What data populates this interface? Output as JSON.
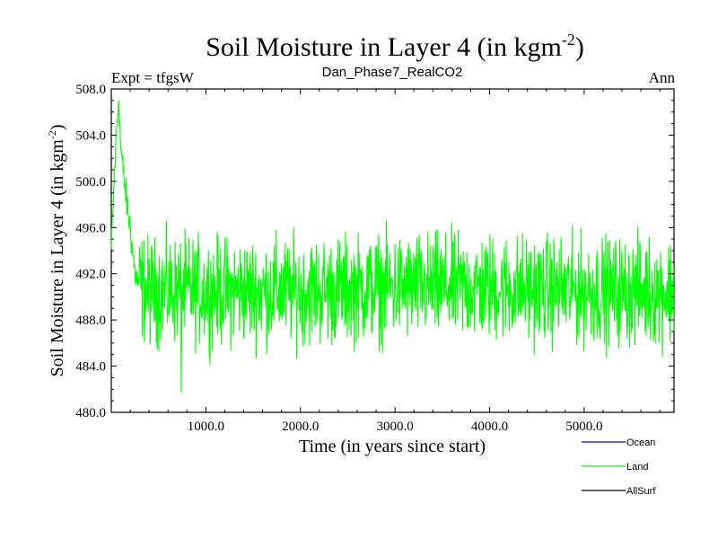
{
  "chart_data": {
    "type": "line",
    "title_main": "Soil Moisture in Layer 4 (in kgm",
    "title_sup": "-2",
    "title_close": ")",
    "subtitle_left": "Expt = tfgsW",
    "subtitle_center": "Dan_Phase7_RealCO2",
    "subtitle_right": "Ann",
    "xlabel": "Time (in years since start)",
    "ylabel_main": "Soil Moisture in Layer 4 (in kgm",
    "ylabel_sup": "-2",
    "ylabel_close": ")",
    "xlim": [
      0,
      5950
    ],
    "ylim": [
      480,
      508
    ],
    "x_ticks": [
      1000,
      2000,
      3000,
      4000,
      5000
    ],
    "x_tick_labels": [
      "1000.0",
      "2000.0",
      "3000.0",
      "4000.0",
      "5000.0"
    ],
    "y_ticks": [
      480,
      484,
      488,
      492,
      496,
      500,
      504,
      508
    ],
    "y_tick_labels": [
      "480.0",
      "484.0",
      "488.0",
      "492.0",
      "496.0",
      "500.0",
      "504.0",
      "508.0"
    ],
    "series": [
      {
        "name": "Land",
        "color": "#00ff00",
        "description_points": [
          [
            0,
            494
          ],
          [
            30,
            500
          ],
          [
            60,
            505
          ],
          [
            80,
            507
          ],
          [
            100,
            503
          ],
          [
            150,
            499
          ],
          [
            200,
            496
          ],
          [
            250,
            492
          ],
          [
            300,
            491
          ],
          [
            400,
            490.5
          ],
          [
            1000,
            490.5
          ],
          [
            2000,
            490.5
          ],
          [
            3000,
            490.8
          ],
          [
            4000,
            490.8
          ],
          [
            5000,
            490.5
          ],
          [
            5950,
            490.5
          ]
        ],
        "extremes": {
          "max": 507,
          "min": 481.7,
          "min_at": 740
        },
        "noise_amplitude": 4.5
      }
    ],
    "legend": [
      {
        "label": "Ocean",
        "color": "#0000ff"
      },
      {
        "label": "Land",
        "color": "#00ff00"
      },
      {
        "label": "AllSurf",
        "color": "#000000"
      }
    ]
  }
}
